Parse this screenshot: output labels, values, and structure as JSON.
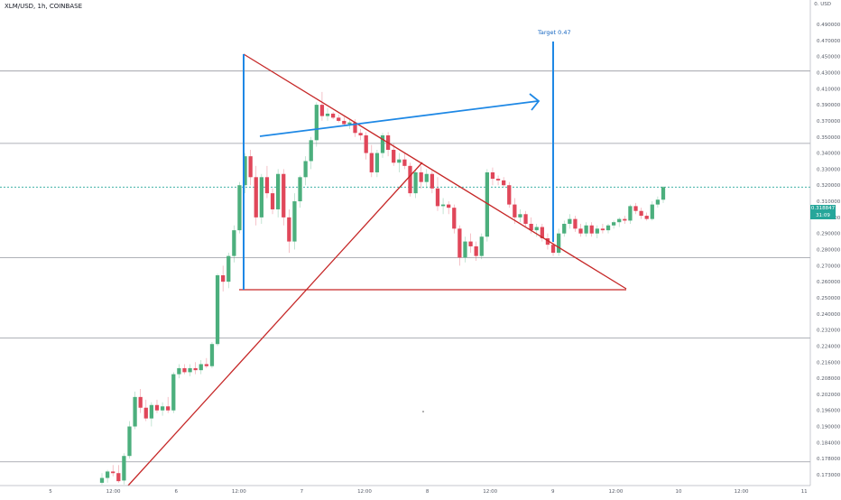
{
  "symbol_title": "XLM/USD, 1h, COINBASE",
  "currency_label": "0. USD",
  "target_label": "Target 0.47",
  "current_price_tag": "0.318847",
  "countdown_tag": "31:09",
  "chart_data": {
    "type": "candlestick",
    "title": "XLM/USD, 1h, COINBASE",
    "x_tick_labels": [
      "5",
      "12:00",
      "6",
      "12:00",
      "7",
      "12:00",
      "8",
      "12:00",
      "9",
      "12:00",
      "10",
      "12:00",
      "11"
    ],
    "y_tick_labels": [
      "0.490000",
      "0.470000",
      "0.450000",
      "0.430000",
      "0.410000",
      "0.390000",
      "0.370000",
      "0.350000",
      "0.340000",
      "0.330000",
      "0.320000",
      "0.310000",
      "0.300000",
      "0.290000",
      "0.280000",
      "0.270000",
      "0.260000",
      "0.250000",
      "0.240000",
      "0.232000",
      "0.224000",
      "0.216000",
      "0.208000",
      "0.202000",
      "0.196000",
      "0.190000",
      "0.184000",
      "0.178000",
      "0.173000"
    ],
    "last_price": 0.318847,
    "horizontal_levels": [
      0.432,
      0.346,
      0.275,
      0.228,
      0.177
    ],
    "colors": {
      "up": "#4caf7d",
      "down": "#e0475a",
      "trendline": "#c62828",
      "projection": "#1e88e5"
    },
    "candles": [
      {
        "o": 0.1705,
        "h": 0.1735,
        "l": 0.17,
        "c": 0.172
      },
      {
        "o": 0.172,
        "h": 0.1745,
        "l": 0.1705,
        "c": 0.174
      },
      {
        "o": 0.174,
        "h": 0.176,
        "l": 0.1725,
        "c": 0.1735
      },
      {
        "o": 0.1735,
        "h": 0.176,
        "l": 0.1705,
        "c": 0.171
      },
      {
        "o": 0.1712,
        "h": 0.18,
        "l": 0.17,
        "c": 0.179
      },
      {
        "o": 0.179,
        "h": 0.192,
        "l": 0.178,
        "c": 0.19
      },
      {
        "o": 0.19,
        "h": 0.203,
        "l": 0.189,
        "c": 0.201
      },
      {
        "o": 0.201,
        "h": 0.204,
        "l": 0.195,
        "c": 0.197
      },
      {
        "o": 0.197,
        "h": 0.2,
        "l": 0.192,
        "c": 0.193
      },
      {
        "o": 0.193,
        "h": 0.199,
        "l": 0.19,
        "c": 0.198
      },
      {
        "o": 0.198,
        "h": 0.2,
        "l": 0.195,
        "c": 0.196
      },
      {
        "o": 0.196,
        "h": 0.199,
        "l": 0.194,
        "c": 0.1975
      },
      {
        "o": 0.1975,
        "h": 0.201,
        "l": 0.195,
        "c": 0.196
      },
      {
        "o": 0.196,
        "h": 0.211,
        "l": 0.195,
        "c": 0.21
      },
      {
        "o": 0.21,
        "h": 0.215,
        "l": 0.208,
        "c": 0.213
      },
      {
        "o": 0.213,
        "h": 0.215,
        "l": 0.21,
        "c": 0.211
      },
      {
        "o": 0.211,
        "h": 0.215,
        "l": 0.209,
        "c": 0.213
      },
      {
        "o": 0.213,
        "h": 0.216,
        "l": 0.21,
        "c": 0.212
      },
      {
        "o": 0.212,
        "h": 0.217,
        "l": 0.21,
        "c": 0.215
      },
      {
        "o": 0.215,
        "h": 0.218,
        "l": 0.213,
        "c": 0.214
      },
      {
        "o": 0.214,
        "h": 0.226,
        "l": 0.213,
        "c": 0.225
      },
      {
        "o": 0.225,
        "h": 0.265,
        "l": 0.224,
        "c": 0.264
      },
      {
        "o": 0.264,
        "h": 0.27,
        "l": 0.254,
        "c": 0.26
      },
      {
        "o": 0.26,
        "h": 0.278,
        "l": 0.256,
        "c": 0.276
      },
      {
        "o": 0.276,
        "h": 0.295,
        "l": 0.272,
        "c": 0.292
      },
      {
        "o": 0.292,
        "h": 0.322,
        "l": 0.29,
        "c": 0.32
      },
      {
        "o": 0.32,
        "h": 0.34,
        "l": 0.315,
        "c": 0.338
      },
      {
        "o": 0.338,
        "h": 0.342,
        "l": 0.32,
        "c": 0.325
      },
      {
        "o": 0.325,
        "h": 0.332,
        "l": 0.295,
        "c": 0.3
      },
      {
        "o": 0.3,
        "h": 0.327,
        "l": 0.296,
        "c": 0.325
      },
      {
        "o": 0.325,
        "h": 0.332,
        "l": 0.312,
        "c": 0.315
      },
      {
        "o": 0.315,
        "h": 0.318,
        "l": 0.302,
        "c": 0.305
      },
      {
        "o": 0.305,
        "h": 0.33,
        "l": 0.3,
        "c": 0.327
      },
      {
        "o": 0.327,
        "h": 0.33,
        "l": 0.295,
        "c": 0.3
      },
      {
        "o": 0.3,
        "h": 0.305,
        "l": 0.278,
        "c": 0.285
      },
      {
        "o": 0.285,
        "h": 0.315,
        "l": 0.28,
        "c": 0.31
      },
      {
        "o": 0.31,
        "h": 0.326,
        "l": 0.306,
        "c": 0.325
      },
      {
        "o": 0.325,
        "h": 0.338,
        "l": 0.32,
        "c": 0.335
      },
      {
        "o": 0.335,
        "h": 0.35,
        "l": 0.33,
        "c": 0.348
      },
      {
        "o": 0.348,
        "h": 0.393,
        "l": 0.344,
        "c": 0.39
      },
      {
        "o": 0.39,
        "h": 0.406,
        "l": 0.37,
        "c": 0.376
      },
      {
        "o": 0.376,
        "h": 0.386,
        "l": 0.37,
        "c": 0.379
      },
      {
        "o": 0.379,
        "h": 0.381,
        "l": 0.372,
        "c": 0.374
      },
      {
        "o": 0.374,
        "h": 0.378,
        "l": 0.368,
        "c": 0.37
      },
      {
        "o": 0.37,
        "h": 0.375,
        "l": 0.364,
        "c": 0.366
      },
      {
        "o": 0.366,
        "h": 0.371,
        "l": 0.36,
        "c": 0.368
      },
      {
        "o": 0.368,
        "h": 0.372,
        "l": 0.35,
        "c": 0.355
      },
      {
        "o": 0.355,
        "h": 0.36,
        "l": 0.348,
        "c": 0.352
      },
      {
        "o": 0.352,
        "h": 0.356,
        "l": 0.336,
        "c": 0.34
      },
      {
        "o": 0.34,
        "h": 0.345,
        "l": 0.325,
        "c": 0.328
      },
      {
        "o": 0.328,
        "h": 0.342,
        "l": 0.325,
        "c": 0.34
      },
      {
        "o": 0.34,
        "h": 0.355,
        "l": 0.337,
        "c": 0.352
      },
      {
        "o": 0.352,
        "h": 0.356,
        "l": 0.338,
        "c": 0.342
      },
      {
        "o": 0.342,
        "h": 0.346,
        "l": 0.332,
        "c": 0.334
      },
      {
        "o": 0.334,
        "h": 0.34,
        "l": 0.328,
        "c": 0.336
      },
      {
        "o": 0.336,
        "h": 0.34,
        "l": 0.33,
        "c": 0.332
      },
      {
        "o": 0.332,
        "h": 0.334,
        "l": 0.313,
        "c": 0.315
      },
      {
        "o": 0.315,
        "h": 0.33,
        "l": 0.312,
        "c": 0.328
      },
      {
        "o": 0.328,
        "h": 0.332,
        "l": 0.318,
        "c": 0.322
      },
      {
        "o": 0.322,
        "h": 0.33,
        "l": 0.318,
        "c": 0.327
      },
      {
        "o": 0.327,
        "h": 0.33,
        "l": 0.315,
        "c": 0.318
      },
      {
        "o": 0.318,
        "h": 0.325,
        "l": 0.304,
        "c": 0.307
      },
      {
        "o": 0.307,
        "h": 0.312,
        "l": 0.302,
        "c": 0.308
      },
      {
        "o": 0.308,
        "h": 0.31,
        "l": 0.302,
        "c": 0.306
      },
      {
        "o": 0.306,
        "h": 0.308,
        "l": 0.29,
        "c": 0.293
      },
      {
        "o": 0.293,
        "h": 0.295,
        "l": 0.27,
        "c": 0.275
      },
      {
        "o": 0.275,
        "h": 0.288,
        "l": 0.272,
        "c": 0.285
      },
      {
        "o": 0.285,
        "h": 0.29,
        "l": 0.278,
        "c": 0.282
      },
      {
        "o": 0.282,
        "h": 0.285,
        "l": 0.273,
        "c": 0.276
      },
      {
        "o": 0.276,
        "h": 0.29,
        "l": 0.274,
        "c": 0.288
      },
      {
        "o": 0.288,
        "h": 0.33,
        "l": 0.285,
        "c": 0.328
      },
      {
        "o": 0.328,
        "h": 0.331,
        "l": 0.32,
        "c": 0.324
      },
      {
        "o": 0.324,
        "h": 0.326,
        "l": 0.32,
        "c": 0.323
      },
      {
        "o": 0.323,
        "h": 0.325,
        "l": 0.319,
        "c": 0.32
      },
      {
        "o": 0.32,
        "h": 0.322,
        "l": 0.306,
        "c": 0.308
      },
      {
        "o": 0.308,
        "h": 0.312,
        "l": 0.296,
        "c": 0.3
      },
      {
        "o": 0.3,
        "h": 0.305,
        "l": 0.297,
        "c": 0.302
      },
      {
        "o": 0.302,
        "h": 0.304,
        "l": 0.294,
        "c": 0.296
      },
      {
        "o": 0.296,
        "h": 0.3,
        "l": 0.29,
        "c": 0.292
      },
      {
        "o": 0.292,
        "h": 0.296,
        "l": 0.288,
        "c": 0.294
      },
      {
        "o": 0.294,
        "h": 0.296,
        "l": 0.285,
        "c": 0.287
      },
      {
        "o": 0.287,
        "h": 0.29,
        "l": 0.28,
        "c": 0.283
      },
      {
        "o": 0.283,
        "h": 0.285,
        "l": 0.276,
        "c": 0.278
      },
      {
        "o": 0.278,
        "h": 0.293,
        "l": 0.276,
        "c": 0.29
      },
      {
        "o": 0.29,
        "h": 0.298,
        "l": 0.288,
        "c": 0.296
      },
      {
        "o": 0.296,
        "h": 0.302,
        "l": 0.293,
        "c": 0.299
      },
      {
        "o": 0.299,
        "h": 0.301,
        "l": 0.291,
        "c": 0.293
      },
      {
        "o": 0.293,
        "h": 0.296,
        "l": 0.288,
        "c": 0.29
      },
      {
        "o": 0.29,
        "h": 0.297,
        "l": 0.288,
        "c": 0.295
      },
      {
        "o": 0.295,
        "h": 0.297,
        "l": 0.288,
        "c": 0.29
      },
      {
        "o": 0.29,
        "h": 0.295,
        "l": 0.287,
        "c": 0.293
      },
      {
        "o": 0.293,
        "h": 0.296,
        "l": 0.29,
        "c": 0.292
      },
      {
        "o": 0.292,
        "h": 0.296,
        "l": 0.29,
        "c": 0.295
      },
      {
        "o": 0.295,
        "h": 0.298,
        "l": 0.293,
        "c": 0.297
      },
      {
        "o": 0.297,
        "h": 0.3,
        "l": 0.294,
        "c": 0.299
      },
      {
        "o": 0.299,
        "h": 0.301,
        "l": 0.296,
        "c": 0.298
      },
      {
        "o": 0.298,
        "h": 0.308,
        "l": 0.296,
        "c": 0.307
      },
      {
        "o": 0.307,
        "h": 0.309,
        "l": 0.302,
        "c": 0.304
      },
      {
        "o": 0.304,
        "h": 0.306,
        "l": 0.299,
        "c": 0.301
      },
      {
        "o": 0.301,
        "h": 0.303,
        "l": 0.298,
        "c": 0.299
      },
      {
        "o": 0.299,
        "h": 0.31,
        "l": 0.298,
        "c": 0.308
      },
      {
        "o": 0.308,
        "h": 0.313,
        "l": 0.306,
        "c": 0.311
      },
      {
        "o": 0.311,
        "h": 0.3195,
        "l": 0.309,
        "c": 0.31885
      }
    ]
  }
}
